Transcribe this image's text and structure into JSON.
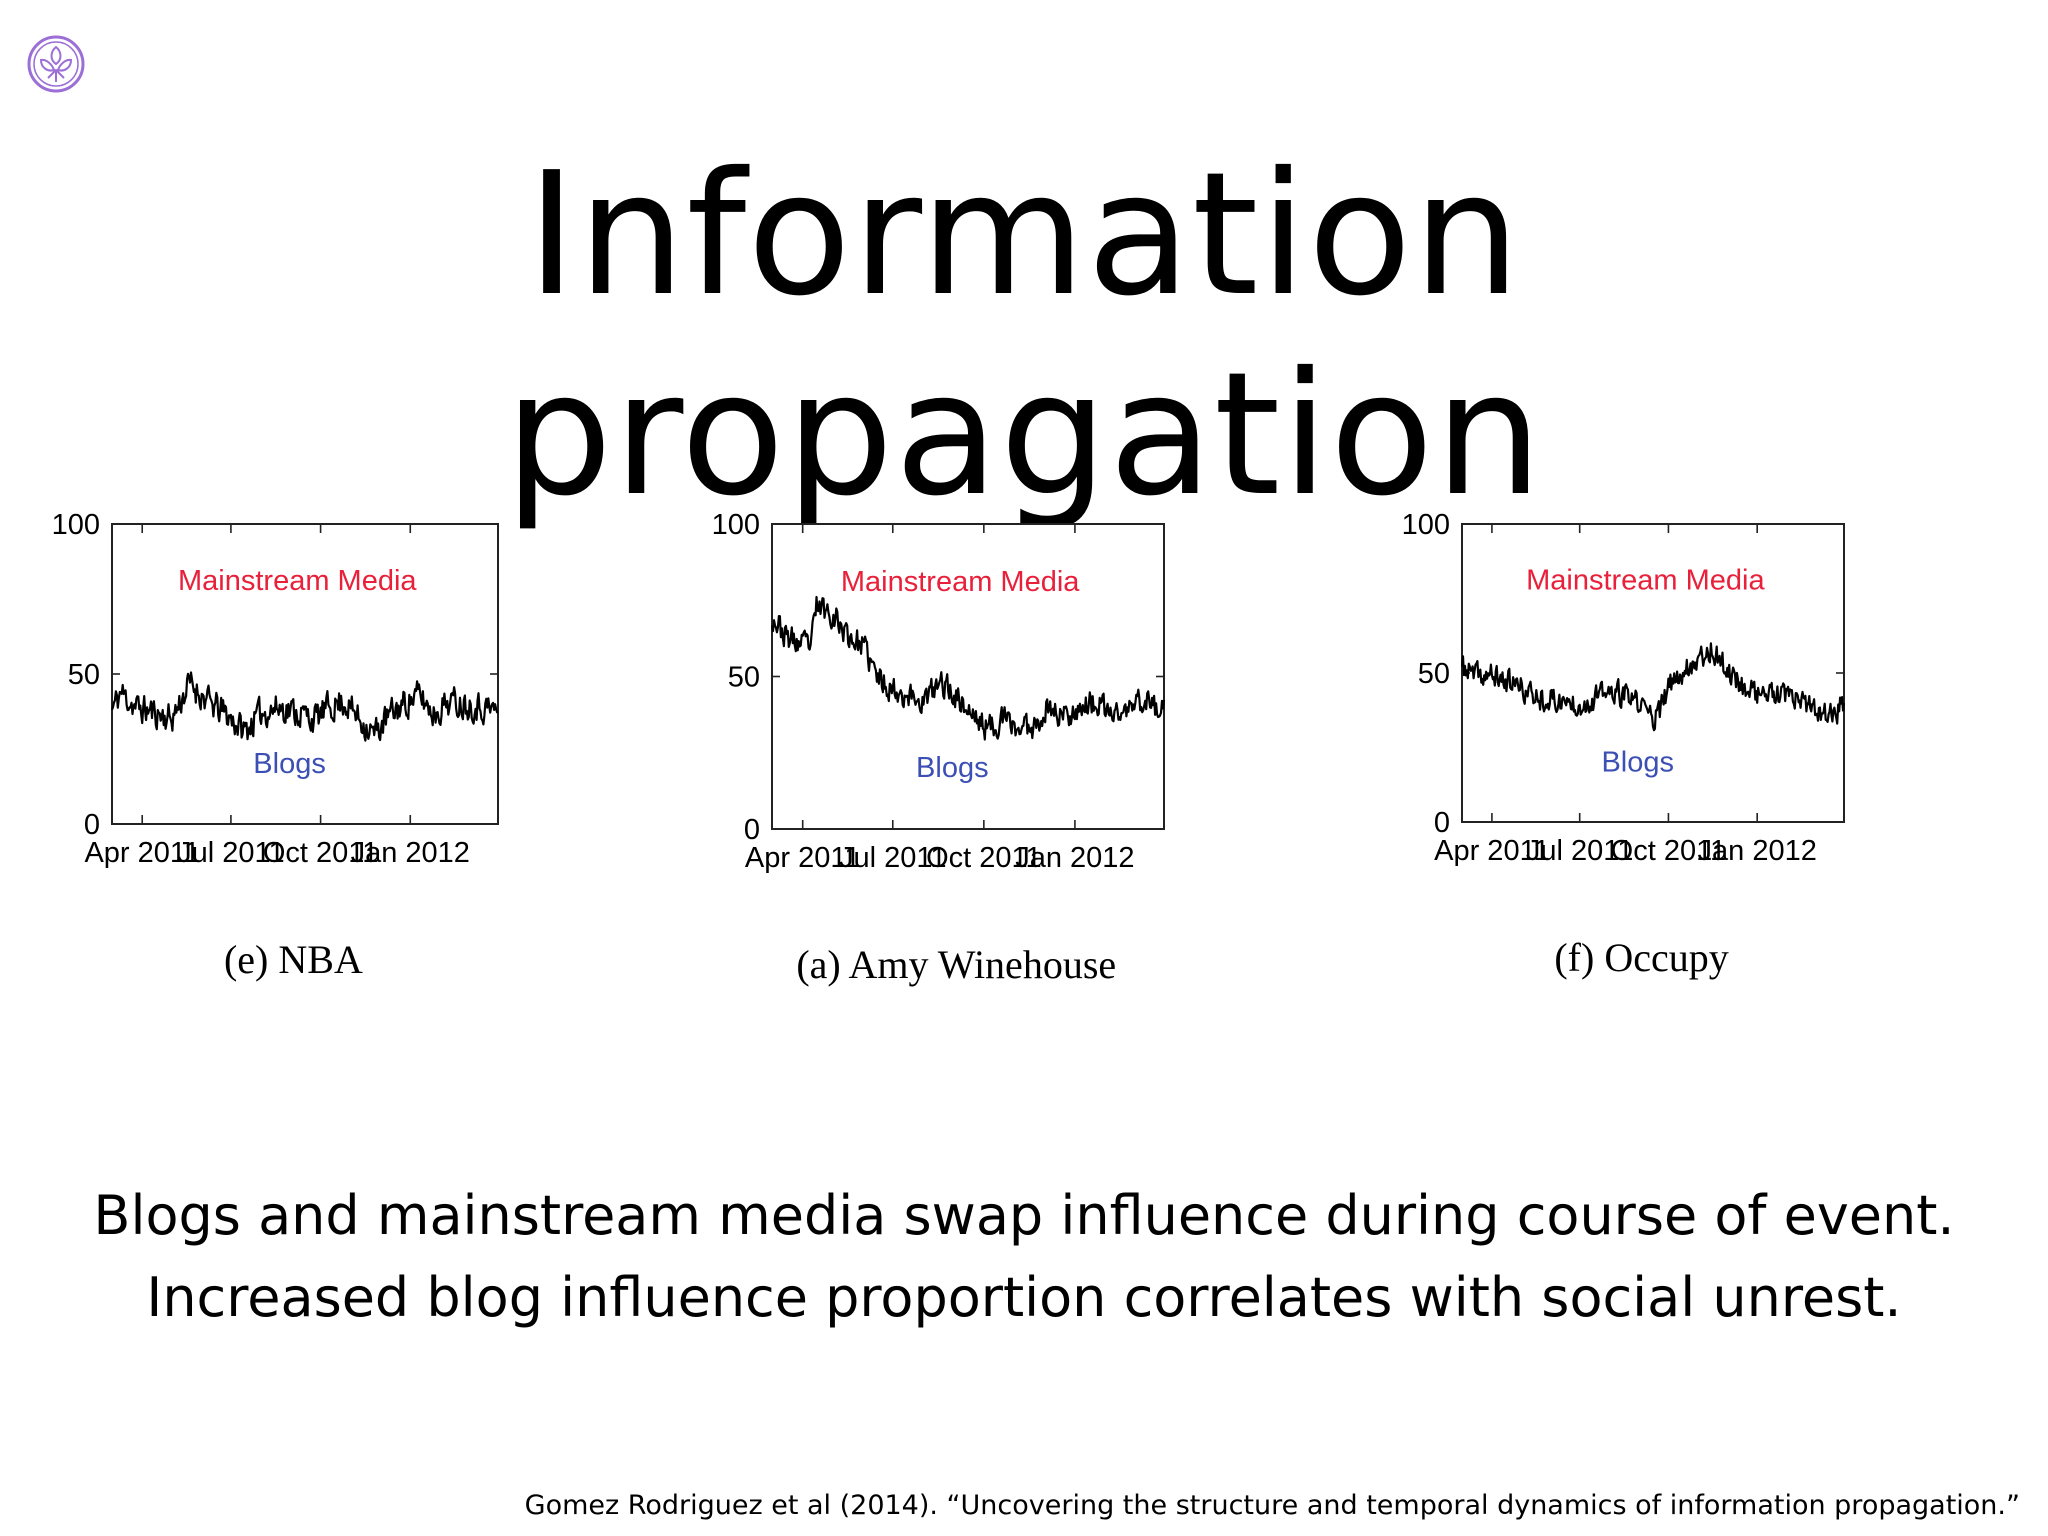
{
  "slide": {
    "title": "Information propagation",
    "summary_lines": [
      "Blogs and mainstream media swap influence during course of event.",
      "Increased blog influence proportion correlates with social unrest."
    ],
    "citation": "Gomez Rodriguez et al (2014). “Uncovering the structure and temporal dynamics of information propagation.”",
    "logo_icon": "university-crest-icon",
    "colors": {
      "mainstream": "#e8203a",
      "blogs": "#3c4fb4",
      "logo": "#9b6fd6"
    }
  },
  "chart_data": [
    {
      "type": "line",
      "caption": "(e) NBA",
      "region_top_label": "Mainstream Media",
      "region_bottom_label": "Blogs",
      "yticks": [
        0,
        50,
        100
      ],
      "ylim": [
        0,
        100
      ],
      "xticks": [
        "Apr 2011",
        "Jul 2011",
        "Oct 2011",
        "Jan 2012"
      ],
      "x_start": "2011-03-01",
      "x_end": "2012-03-31",
      "xtick_dates": [
        "2011-04-01",
        "2011-07-01",
        "2011-10-01",
        "2012-01-01"
      ],
      "keypoints": [
        [
          "2011-03-01",
          38
        ],
        [
          "2011-03-10",
          44
        ],
        [
          "2011-03-25",
          39
        ],
        [
          "2011-04-15",
          37
        ],
        [
          "2011-05-01",
          35
        ],
        [
          "2011-05-20",
          47
        ],
        [
          "2011-06-10",
          40
        ],
        [
          "2011-06-25",
          37
        ],
        [
          "2011-07-15",
          31
        ],
        [
          "2011-08-01",
          37
        ],
        [
          "2011-08-20",
          39
        ],
        [
          "2011-09-10",
          37
        ],
        [
          "2011-09-25",
          35
        ],
        [
          "2011-10-10",
          39
        ],
        [
          "2011-10-25",
          41
        ],
        [
          "2011-11-10",
          35
        ],
        [
          "2011-11-25",
          30
        ],
        [
          "2011-12-10",
          36
        ],
        [
          "2011-12-25",
          40
        ],
        [
          "2012-01-10",
          43
        ],
        [
          "2012-01-25",
          37
        ],
        [
          "2012-02-10",
          41
        ],
        [
          "2012-03-01",
          40
        ],
        [
          "2012-03-31",
          38
        ]
      ],
      "noise_amplitude": 4.5,
      "seed": 11
    },
    {
      "type": "line",
      "caption": "(a) Amy Winehouse",
      "region_top_label": "Mainstream Media",
      "region_bottom_label": "Blogs",
      "yticks": [
        0,
        50,
        100
      ],
      "ylim": [
        0,
        100
      ],
      "xticks": [
        "Apr 2011",
        "Jul 2011",
        "Oct 2011",
        "Jan 2012"
      ],
      "x_start": "2011-03-01",
      "x_end": "2012-03-31",
      "xtick_dates": [
        "2011-04-01",
        "2011-07-01",
        "2011-10-01",
        "2012-01-01"
      ],
      "keypoints": [
        [
          "2011-03-01",
          70
        ],
        [
          "2011-03-15",
          63
        ],
        [
          "2011-04-01",
          60
        ],
        [
          "2011-04-10",
          61
        ],
        [
          "2011-04-15",
          73
        ],
        [
          "2011-05-01",
          71
        ],
        [
          "2011-05-15",
          64
        ],
        [
          "2011-06-01",
          60
        ],
        [
          "2011-06-15",
          50
        ],
        [
          "2011-07-01",
          46
        ],
        [
          "2011-07-15",
          44
        ],
        [
          "2011-08-01",
          42
        ],
        [
          "2011-08-20",
          48
        ],
        [
          "2011-09-05",
          43
        ],
        [
          "2011-09-20",
          37
        ],
        [
          "2011-10-05",
          33
        ],
        [
          "2011-10-20",
          36
        ],
        [
          "2011-11-05",
          33
        ],
        [
          "2011-11-20",
          34
        ],
        [
          "2011-12-05",
          40
        ],
        [
          "2011-12-20",
          37
        ],
        [
          "2012-01-05",
          40
        ],
        [
          "2012-01-20",
          41
        ],
        [
          "2012-02-05",
          38
        ],
        [
          "2012-02-20",
          38
        ],
        [
          "2012-03-10",
          43
        ],
        [
          "2012-03-31",
          38
        ]
      ],
      "noise_amplitude": 4.0,
      "seed": 23
    },
    {
      "type": "line",
      "caption": "(f) Occupy",
      "region_top_label": "Mainstream Media",
      "region_bottom_label": "Blogs",
      "yticks": [
        0,
        50,
        100
      ],
      "ylim": [
        0,
        100
      ],
      "xticks": [
        "Apr 2011",
        "Jul 2011",
        "Oct 2011",
        "Jan 2012"
      ],
      "x_start": "2011-03-01",
      "x_end": "2012-03-31",
      "xtick_dates": [
        "2011-04-01",
        "2011-07-01",
        "2011-10-01",
        "2012-01-01"
      ],
      "keypoints": [
        [
          "2011-03-01",
          52
        ],
        [
          "2011-03-15",
          49
        ],
        [
          "2011-04-01",
          49
        ],
        [
          "2011-04-20",
          47
        ],
        [
          "2011-05-10",
          43
        ],
        [
          "2011-06-01",
          41
        ],
        [
          "2011-06-20",
          40
        ],
        [
          "2011-07-10",
          40
        ],
        [
          "2011-07-25",
          43
        ],
        [
          "2011-08-10",
          43
        ],
        [
          "2011-08-25",
          41
        ],
        [
          "2011-09-10",
          37
        ],
        [
          "2011-09-20",
          35
        ],
        [
          "2011-10-01",
          45
        ],
        [
          "2011-10-20",
          52
        ],
        [
          "2011-11-05",
          56
        ],
        [
          "2011-11-15",
          58
        ],
        [
          "2011-12-01",
          51
        ],
        [
          "2011-12-20",
          45
        ],
        [
          "2012-01-05",
          43
        ],
        [
          "2012-01-25",
          42
        ],
        [
          "2012-02-10",
          41
        ],
        [
          "2012-03-01",
          37
        ],
        [
          "2012-03-20",
          36
        ],
        [
          "2012-03-31",
          40
        ]
      ],
      "noise_amplitude": 3.8,
      "seed": 37
    }
  ]
}
